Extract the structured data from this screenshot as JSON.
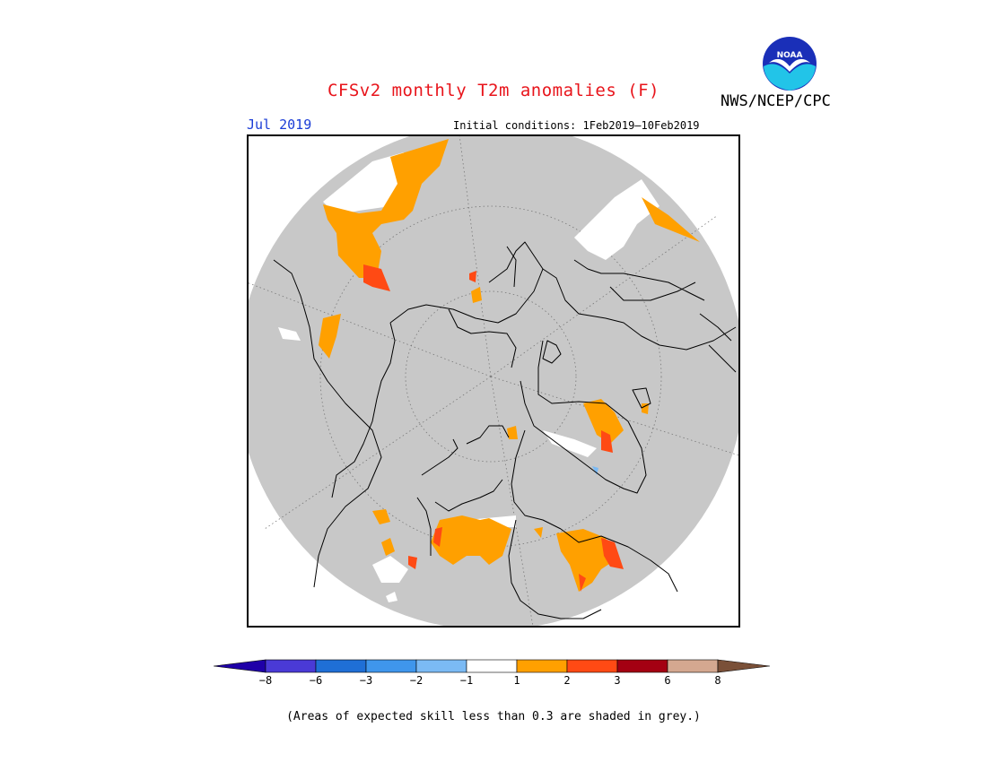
{
  "header": {
    "title": "CFSv2 monthly T2m anomalies (F)",
    "agency": "NWS/NCEP/CPC",
    "logo_text": "NOAA",
    "valid_month": "Jul 2019",
    "initial_conditions": "Initial conditions: 1Feb2019–10Feb2019"
  },
  "map": {
    "projection": "polar stereographic (north pole)",
    "background_color": "#c8c8c8",
    "skill_mask_note": "(Areas of expected skill less than 0.3 are shaded in grey.)"
  },
  "legend": {
    "colors": [
      "#1f00a8",
      "#4a3ad6",
      "#1f6fd6",
      "#3f96ec",
      "#7bbaf4",
      "#ffffff",
      "#ffa000",
      "#ff4a14",
      "#a40012",
      "#d4a890",
      "#7a5038"
    ],
    "labels": [
      "−8",
      "−6",
      "−3",
      "−2",
      "−1",
      "1",
      "2",
      "3",
      "6",
      "8"
    ]
  }
}
